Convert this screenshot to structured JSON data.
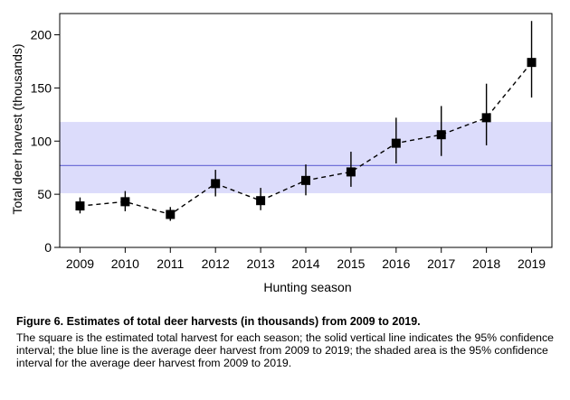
{
  "chart_data": {
    "type": "scatter",
    "x": [
      2009,
      2010,
      2011,
      2012,
      2013,
      2014,
      2015,
      2016,
      2017,
      2018,
      2019
    ],
    "y": [
      39,
      43,
      31,
      60,
      44,
      63,
      71,
      98,
      106,
      122,
      174
    ],
    "ci_low": [
      32,
      34,
      25,
      48,
      35,
      49,
      57,
      79,
      86,
      96,
      141
    ],
    "ci_high": [
      47,
      53,
      38,
      73,
      56,
      78,
      90,
      122,
      133,
      154,
      213
    ],
    "average": 77,
    "average_ci": [
      51,
      118
    ],
    "xlabel": "Hunting season",
    "ylabel": "Total deer harvest (thousands)",
    "yticks": [
      0,
      50,
      100,
      150,
      200
    ],
    "ylim": [
      0,
      220
    ],
    "xlim": [
      2008.55,
      2019.45
    ],
    "grid": false,
    "colors": {
      "band": "#dcdcfb",
      "average_line": "#7070d8",
      "points": "#000000"
    }
  },
  "caption": {
    "title": "Figure 6. Estimates of total deer harvests (in thousands) from 2009 to 2019.",
    "body": "The square is the estimated total harvest for each season; the solid vertical line indicates the 95% confidence interval; the blue line is the average deer harvest from 2009 to 2019; the shaded area is the 95% confidence interval for the average deer harvest from 2009 to 2019."
  }
}
